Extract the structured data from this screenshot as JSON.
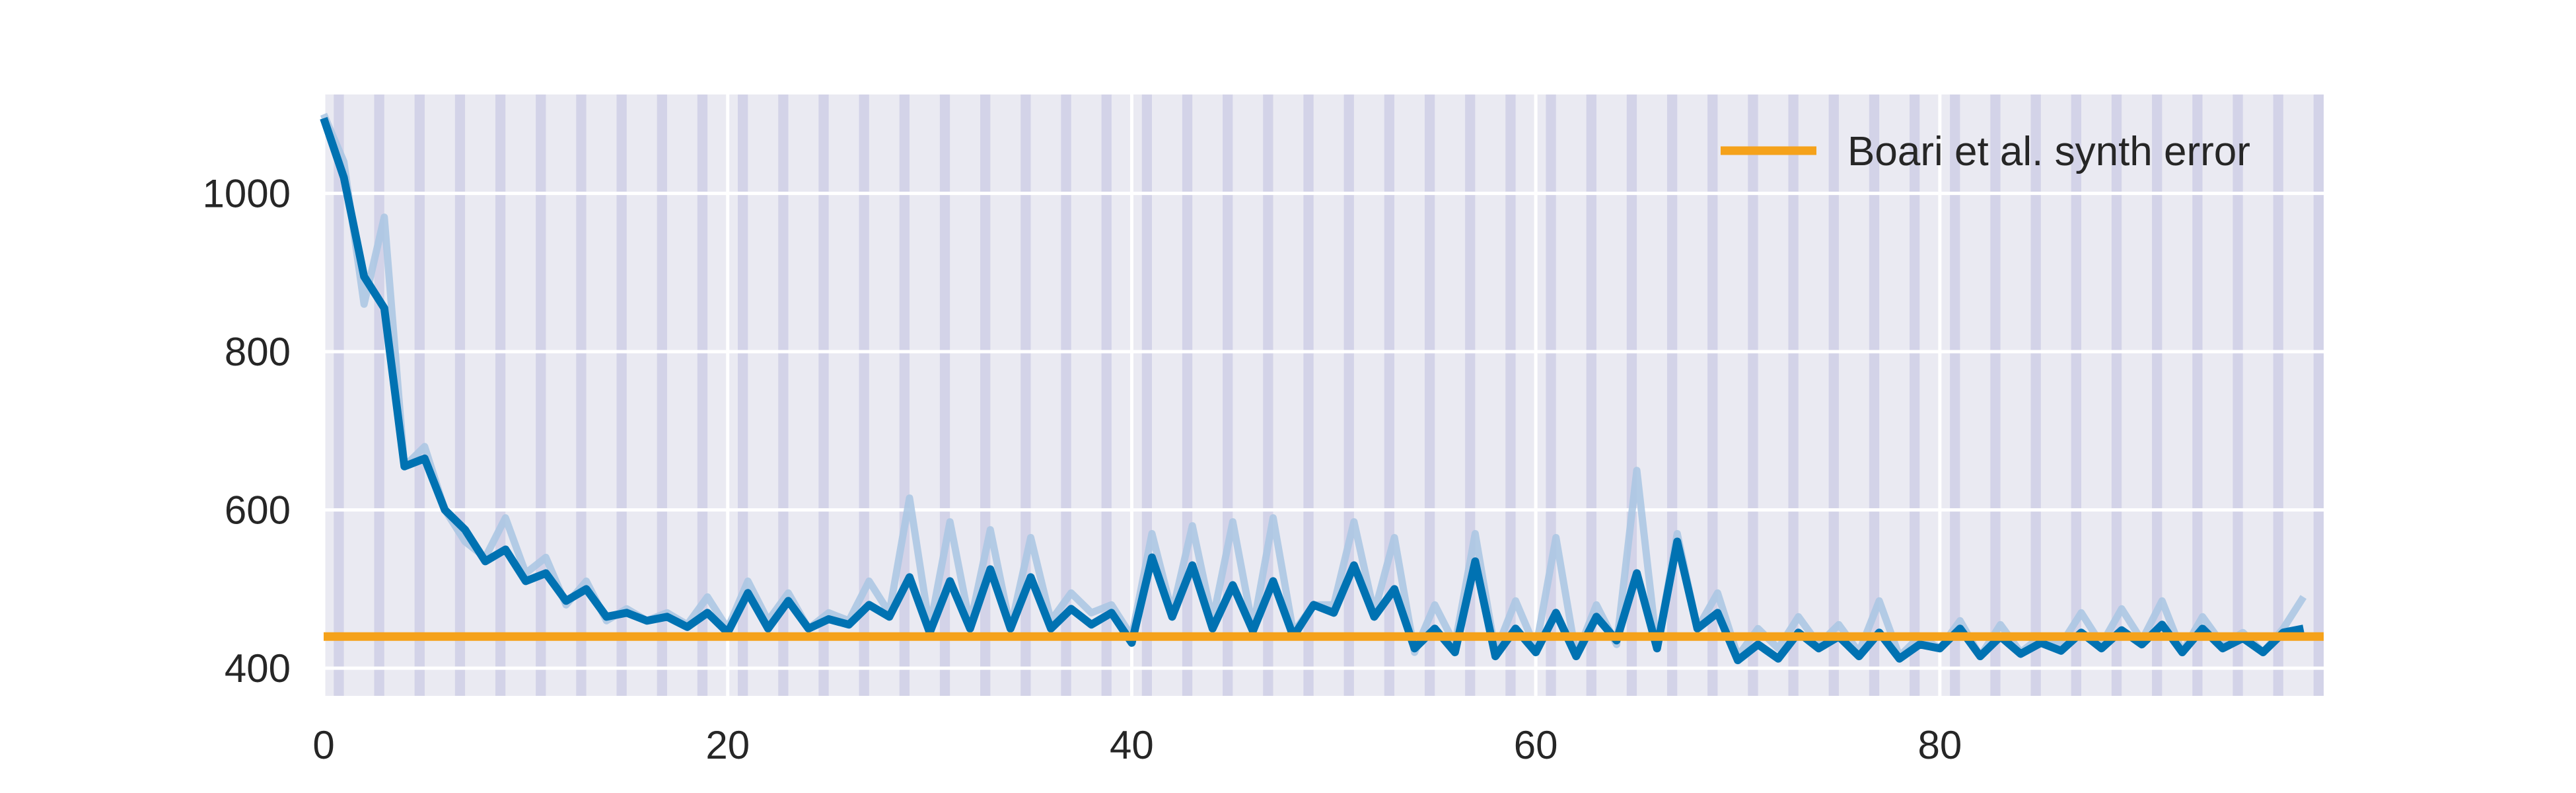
{
  "chart_data": {
    "type": "line",
    "title": "",
    "xlabel": "",
    "ylabel": "",
    "xlim": [
      0,
      99
    ],
    "ylim": [
      365,
      1125
    ],
    "x_ticks": [
      0,
      20,
      40,
      60,
      80
    ],
    "y_ticks": [
      400,
      600,
      800,
      1000
    ],
    "grid": true,
    "legend_placement": "top-right",
    "shaded_bands": {
      "description_period": 2,
      "color": "#d3d3e8",
      "background": "#eaeaf2"
    },
    "series": [
      {
        "role": "raw",
        "color": "#a9c6e3",
        "x_start": 0,
        "values": [
          1100,
          1040,
          860,
          970,
          655,
          680,
          600,
          560,
          540,
          590,
          520,
          540,
          480,
          510,
          460,
          475,
          460,
          470,
          455,
          490,
          450,
          510,
          460,
          495,
          450,
          470,
          460,
          510,
          470,
          615,
          450,
          585,
          455,
          575,
          450,
          565,
          460,
          495,
          470,
          480,
          440,
          570,
          470,
          580,
          460,
          585,
          450,
          590,
          445,
          480,
          480,
          585,
          470,
          565,
          420,
          480,
          430,
          570,
          420,
          485,
          425,
          565,
          415,
          480,
          430,
          650,
          425,
          570,
          450,
          495,
          415,
          450,
          425,
          465,
          430,
          455,
          420,
          485,
          415,
          440,
          425,
          460,
          415,
          455,
          420,
          440,
          430,
          470,
          430,
          475,
          435,
          485,
          420,
          465,
          430,
          445,
          420,
          450,
          490
        ]
      },
      {
        "role": "smoothed",
        "color": "#0072b2",
        "x_start": 0,
        "values": [
          1095,
          1020,
          895,
          855,
          655,
          665,
          600,
          575,
          535,
          550,
          510,
          520,
          485,
          500,
          465,
          470,
          460,
          465,
          452,
          470,
          445,
          495,
          450,
          485,
          450,
          462,
          455,
          480,
          465,
          515,
          445,
          510,
          450,
          525,
          450,
          515,
          450,
          475,
          455,
          470,
          432,
          540,
          465,
          530,
          450,
          505,
          447,
          510,
          440,
          480,
          470,
          530,
          465,
          500,
          425,
          450,
          420,
          535,
          415,
          450,
          420,
          470,
          415,
          465,
          435,
          520,
          425,
          560,
          450,
          470,
          410,
          430,
          412,
          445,
          425,
          440,
          415,
          445,
          412,
          430,
          425,
          450,
          415,
          440,
          418,
          432,
          422,
          445,
          425,
          448,
          430,
          455,
          420,
          450,
          425,
          438,
          420,
          445,
          450
        ]
      },
      {
        "name": "Boari et al. synth error",
        "role": "reference",
        "color": "#f5a21b",
        "constant": 440
      }
    ]
  }
}
